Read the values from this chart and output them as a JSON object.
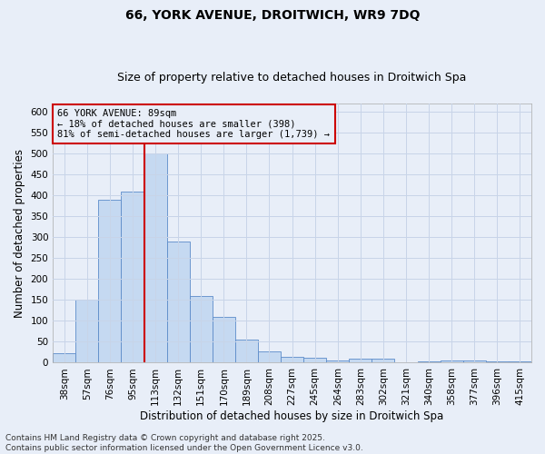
{
  "title_line1": "66, YORK AVENUE, DROITWICH, WR9 7DQ",
  "title_line2": "Size of property relative to detached houses in Droitwich Spa",
  "xlabel": "Distribution of detached houses by size in Droitwich Spa",
  "ylabel": "Number of detached properties",
  "categories": [
    "38sqm",
    "57sqm",
    "76sqm",
    "95sqm",
    "113sqm",
    "132sqm",
    "151sqm",
    "170sqm",
    "189sqm",
    "208sqm",
    "227sqm",
    "245sqm",
    "264sqm",
    "283sqm",
    "302sqm",
    "321sqm",
    "340sqm",
    "358sqm",
    "377sqm",
    "396sqm",
    "415sqm"
  ],
  "values": [
    22,
    150,
    390,
    410,
    500,
    290,
    160,
    110,
    55,
    28,
    15,
    12,
    6,
    9,
    9,
    0,
    3,
    5,
    5,
    3,
    3
  ],
  "bar_color": "#c5d9f1",
  "bar_edge_color": "#5b8bc9",
  "grid_color": "#c8d4e8",
  "background_color": "#e8eef8",
  "vline_x_index": 3.5,
  "vline_color": "#cc0000",
  "annotation_line1": "66 YORK AVENUE: 89sqm",
  "annotation_line2": "← 18% of detached houses are smaller (398)",
  "annotation_line3": "81% of semi-detached houses are larger (1,739) →",
  "annotation_box_color": "#cc0000",
  "annotation_text_color": "#000000",
  "ylim": [
    0,
    620
  ],
  "yticks": [
    0,
    50,
    100,
    150,
    200,
    250,
    300,
    350,
    400,
    450,
    500,
    550,
    600
  ],
  "footer_line1": "Contains HM Land Registry data © Crown copyright and database right 2025.",
  "footer_line2": "Contains public sector information licensed under the Open Government Licence v3.0.",
  "title_fontsize": 10,
  "subtitle_fontsize": 9,
  "axis_label_fontsize": 8.5,
  "tick_fontsize": 7.5,
  "annotation_fontsize": 7.5,
  "footer_fontsize": 6.5
}
